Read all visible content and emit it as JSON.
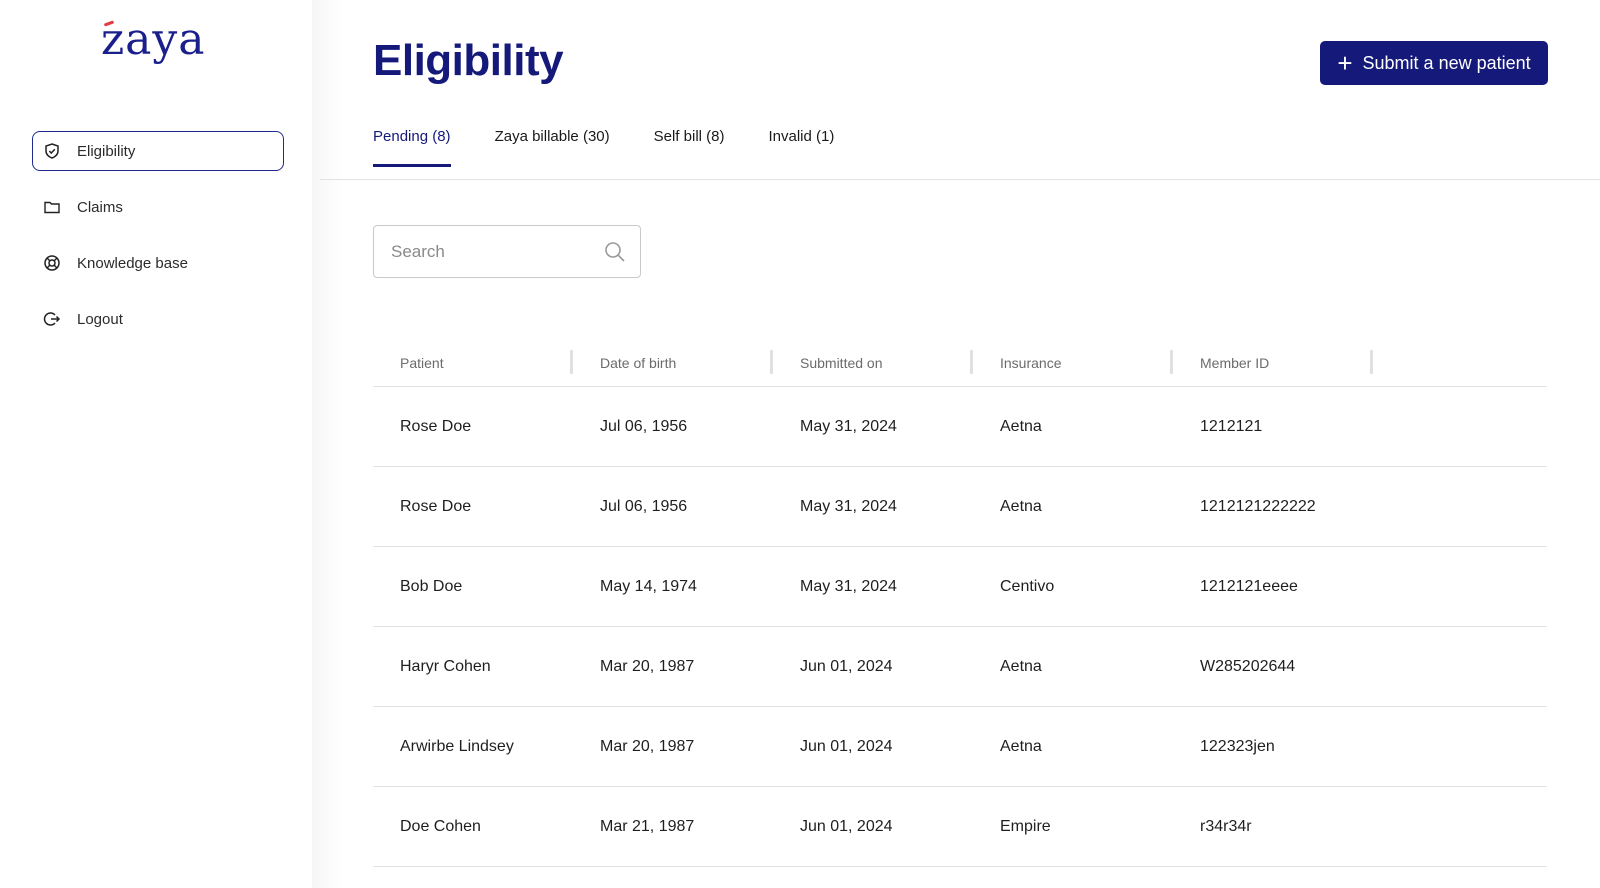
{
  "brand": {
    "logo_text": "zaya",
    "accent": "#14197a"
  },
  "sidebar": {
    "items": [
      {
        "label": "Eligibility",
        "icon": "shield-check-icon",
        "active": true
      },
      {
        "label": "Claims",
        "icon": "folder-icon",
        "active": false
      },
      {
        "label": "Knowledge base",
        "icon": "lifebuoy-icon",
        "active": false
      },
      {
        "label": "Logout",
        "icon": "logout-icon",
        "active": false
      }
    ]
  },
  "header": {
    "title": "Eligibility",
    "submit_label": "Submit a new patient",
    "submit_icon": "plus-icon"
  },
  "tabs": [
    {
      "label": "Pending (8)",
      "active": true
    },
    {
      "label": "Zaya billable (30)",
      "active": false
    },
    {
      "label": "Self bill (8)",
      "active": false
    },
    {
      "label": "Invalid (1)",
      "active": false
    }
  ],
  "search": {
    "placeholder": "Search",
    "value": "",
    "icon": "search-icon"
  },
  "table": {
    "columns": [
      "Patient",
      "Date of birth",
      "Submitted on",
      "Insurance",
      "Member ID"
    ],
    "rows": [
      [
        "Rose Doe",
        "Jul 06, 1956",
        "May 31, 2024",
        "Aetna",
        "1212121"
      ],
      [
        "Rose Doe",
        "Jul 06, 1956",
        "May 31, 2024",
        "Aetna",
        "1212121222222"
      ],
      [
        "Bob Doe",
        "May 14, 1974",
        "May 31, 2024",
        "Centivo",
        "1212121eeee"
      ],
      [
        "Haryr Cohen",
        "Mar 20, 1987",
        "Jun 01, 2024",
        "Aetna",
        "W285202644"
      ],
      [
        "Arwirbe Lindsey",
        "Mar 20, 1987",
        "Jun 01, 2024",
        "Aetna",
        "122323jen"
      ],
      [
        "Doe Cohen",
        "Mar 21, 1987",
        "Jun 01, 2024",
        "Empire",
        "r34r34r"
      ]
    ]
  }
}
